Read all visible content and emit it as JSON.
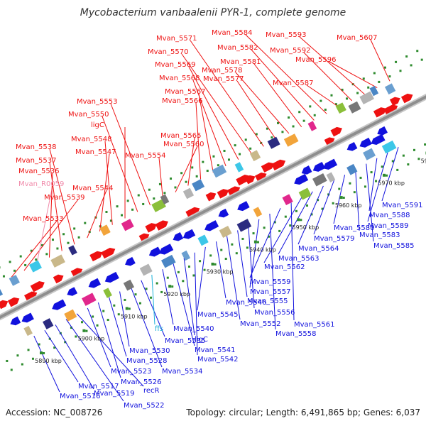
{
  "title": "Mycobacterium vanbaalenii PYR-1, complete genome",
  "footer": {
    "accession": "Accession: NC_008726",
    "summary": "Topology: circular; Length: 6,491,865 bp; Genes: 6,037"
  },
  "colors": {
    "forward": "#ee1111",
    "reverse": "#1111dd",
    "rna": "#1ab0d8",
    "pseudo": "#f08aaa",
    "spine": "#9a9a9a"
  },
  "scale_labels": [
    "5890 kbp",
    "5900 kbp",
    "5910 kbp",
    "5920 kbp",
    "5930 kbp",
    "5940 kbp",
    "5950 kbp",
    "5960 kbp",
    "5970 kbp",
    "5980 kbp"
  ],
  "upper_labels": [
    {
      "text": "Mvan_5533",
      "type": "forward"
    },
    {
      "text": "Mvan_5539",
      "type": "forward"
    },
    {
      "text": "Mvan_R0059",
      "type": "pseudo"
    },
    {
      "text": "Mvan_5536",
      "type": "forward"
    },
    {
      "text": "Mvan_5537",
      "type": "forward"
    },
    {
      "text": "Mvan_5538",
      "type": "forward"
    },
    {
      "text": "Mvan_5544",
      "type": "forward"
    },
    {
      "text": "Mvan_5547",
      "type": "forward"
    },
    {
      "text": "Mvan_5548",
      "type": "forward"
    },
    {
      "text": "ligC",
      "type": "forward"
    },
    {
      "text": "Mvan_5550",
      "type": "forward"
    },
    {
      "text": "Mvan_5553",
      "type": "forward"
    },
    {
      "text": "Mvan_5554",
      "type": "forward"
    },
    {
      "text": "Mvan_5560",
      "type": "forward"
    },
    {
      "text": "Mvan_5565",
      "type": "forward"
    },
    {
      "text": "Mvan_5566",
      "type": "forward"
    },
    {
      "text": "Mvan_5567",
      "type": "forward"
    },
    {
      "text": "Mvan_5568",
      "type": "forward"
    },
    {
      "text": "Mvan_5569",
      "type": "forward"
    },
    {
      "text": "Mvan_5570",
      "type": "forward"
    },
    {
      "text": "Mvan_5571",
      "type": "forward"
    },
    {
      "text": "Mvan_5577",
      "type": "forward"
    },
    {
      "text": "Mvan_5578",
      "type": "forward"
    },
    {
      "text": "Mvan_5581",
      "type": "forward"
    },
    {
      "text": "Mvan_5582",
      "type": "forward"
    },
    {
      "text": "Mvan_5584",
      "type": "forward"
    },
    {
      "text": "Mvan_5587",
      "type": "forward"
    },
    {
      "text": "Mvan_5592",
      "type": "forward"
    },
    {
      "text": "Mvan_5593",
      "type": "forward"
    },
    {
      "text": "Mvan_5596",
      "type": "forward"
    },
    {
      "text": "Mvan_5607",
      "type": "forward"
    }
  ],
  "lower_labels": [
    {
      "text": "Mvan_5516",
      "type": "reverse"
    },
    {
      "text": "Mvan_5517",
      "type": "reverse"
    },
    {
      "text": "Mvan_5519",
      "type": "reverse"
    },
    {
      "text": "Mvan_5522",
      "type": "reverse"
    },
    {
      "text": "recR",
      "type": "reverse"
    },
    {
      "text": "Mvan_5523",
      "type": "reverse"
    },
    {
      "text": "Mvan_5526",
      "type": "reverse"
    },
    {
      "text": "Mvan_5528",
      "type": "reverse"
    },
    {
      "text": "Mvan_5530",
      "type": "reverse"
    },
    {
      "text": "Mvan_5534",
      "type": "reverse"
    },
    {
      "text": "Mvan_5535",
      "type": "reverse"
    },
    {
      "text": "ffs",
      "type": "rna"
    },
    {
      "text": "Mvan_5540",
      "type": "reverse"
    },
    {
      "text": "Mvan_5541",
      "type": "reverse"
    },
    {
      "text": "ligC",
      "type": "reverse"
    },
    {
      "text": "Mvan_5542",
      "type": "reverse"
    },
    {
      "text": "Mvan_5545",
      "type": "reverse"
    },
    {
      "text": "Mvan_5546",
      "type": "reverse"
    },
    {
      "text": "Mvan_5552",
      "type": "reverse"
    },
    {
      "text": "Mvan_5555",
      "type": "reverse"
    },
    {
      "text": "Mvan_5556",
      "type": "reverse"
    },
    {
      "text": "Mvan_5557",
      "type": "reverse"
    },
    {
      "text": "Mvan_5558",
      "type": "reverse"
    },
    {
      "text": "Mvan_5559",
      "type": "reverse"
    },
    {
      "text": "Mvan_5561",
      "type": "reverse"
    },
    {
      "text": "Mvan_5562",
      "type": "reverse"
    },
    {
      "text": "Mvan_5563",
      "type": "reverse"
    },
    {
      "text": "Mvan_5564",
      "type": "reverse"
    },
    {
      "text": "Mvan_5579",
      "type": "reverse"
    },
    {
      "text": "Mvan_5580",
      "type": "reverse"
    },
    {
      "text": "Mvan_5583",
      "type": "reverse"
    },
    {
      "text": "Mvan_5585",
      "type": "reverse"
    },
    {
      "text": "Mvan_5588",
      "type": "reverse"
    },
    {
      "text": "Mvan_5589",
      "type": "reverse"
    },
    {
      "text": "Mvan_5591",
      "type": "reverse"
    }
  ]
}
